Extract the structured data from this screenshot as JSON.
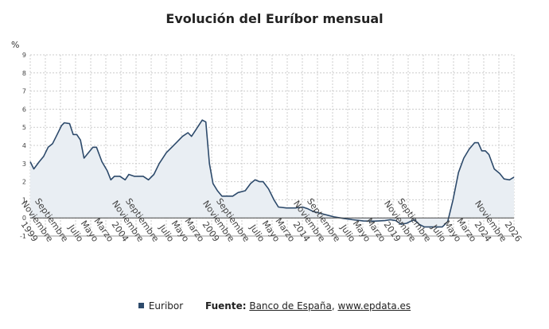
{
  "chart_data": {
    "type": "area",
    "title": "Evolución del Euríbor mensual",
    "ylabel": "%",
    "xlabel": "",
    "ylim": [
      -1,
      9
    ],
    "yticks": [
      -1,
      0,
      1,
      2,
      3,
      4,
      5,
      6,
      7,
      8,
      9
    ],
    "xlim": [
      1999.0,
      2026.0
    ],
    "x_tick_labels": [
      "1999",
      "Noviembre",
      "Septiembre",
      "Julio",
      "Mayo",
      "Marzo",
      "2004",
      "Noviembre",
      "Septiembre",
      "Julio",
      "Mayo",
      "Marzo",
      "2009",
      "Noviembre",
      "Septiembre",
      "Julio",
      "Mayo",
      "Marzo",
      "2014",
      "Noviembre",
      "Septiembre",
      "Julio",
      "Mayo",
      "Marzo",
      "2019",
      "Noviembre",
      "Septiembre",
      "Julio",
      "Mayo",
      "Marzo",
      "2024",
      "Noviembre",
      "2026"
    ],
    "grid": true,
    "legend": "bottom",
    "colors": {
      "line": "#2d4a6b",
      "fill": "#e9eef3",
      "grid": "#cccccc",
      "zero": "#444444"
    },
    "series": [
      {
        "name": "Euribor",
        "points": [
          [
            1999.0,
            3.1
          ],
          [
            1999.2,
            2.7
          ],
          [
            1999.5,
            3.1
          ],
          [
            1999.75,
            3.4
          ],
          [
            2000.0,
            3.9
          ],
          [
            2000.25,
            4.1
          ],
          [
            2000.5,
            4.6
          ],
          [
            2000.75,
            5.1
          ],
          [
            2000.9,
            5.25
          ],
          [
            2001.2,
            5.2
          ],
          [
            2001.4,
            4.6
          ],
          [
            2001.6,
            4.6
          ],
          [
            2001.8,
            4.3
          ],
          [
            2002.0,
            3.3
          ],
          [
            2002.25,
            3.6
          ],
          [
            2002.5,
            3.9
          ],
          [
            2002.7,
            3.9
          ],
          [
            2003.0,
            3.1
          ],
          [
            2003.3,
            2.6
          ],
          [
            2003.5,
            2.1
          ],
          [
            2003.7,
            2.3
          ],
          [
            2004.0,
            2.3
          ],
          [
            2004.3,
            2.1
          ],
          [
            2004.5,
            2.4
          ],
          [
            2004.8,
            2.3
          ],
          [
            2005.3,
            2.3
          ],
          [
            2005.6,
            2.1
          ],
          [
            2005.9,
            2.4
          ],
          [
            2006.2,
            3.0
          ],
          [
            2006.6,
            3.6
          ],
          [
            2006.9,
            3.9
          ],
          [
            2007.2,
            4.2
          ],
          [
            2007.5,
            4.5
          ],
          [
            2007.8,
            4.7
          ],
          [
            2008.0,
            4.5
          ],
          [
            2008.2,
            4.8
          ],
          [
            2008.4,
            5.1
          ],
          [
            2008.6,
            5.4
          ],
          [
            2008.8,
            5.3
          ],
          [
            2009.0,
            3.0
          ],
          [
            2009.2,
            1.9
          ],
          [
            2009.45,
            1.5
          ],
          [
            2009.7,
            1.2
          ],
          [
            2010.3,
            1.2
          ],
          [
            2010.6,
            1.4
          ],
          [
            2011.0,
            1.5
          ],
          [
            2011.3,
            1.9
          ],
          [
            2011.55,
            2.1
          ],
          [
            2011.8,
            2.0
          ],
          [
            2012.0,
            2.0
          ],
          [
            2012.3,
            1.6
          ],
          [
            2012.6,
            1.0
          ],
          [
            2012.85,
            0.6
          ],
          [
            2013.3,
            0.55
          ],
          [
            2013.8,
            0.55
          ],
          [
            2014.2,
            0.6
          ],
          [
            2014.5,
            0.5
          ],
          [
            2014.8,
            0.35
          ],
          [
            2015.2,
            0.25
          ],
          [
            2015.6,
            0.15
          ],
          [
            2016.0,
            0.05
          ],
          [
            2016.5,
            -0.03
          ],
          [
            2017.0,
            -0.1
          ],
          [
            2017.6,
            -0.17
          ],
          [
            2018.2,
            -0.18
          ],
          [
            2018.8,
            -0.15
          ],
          [
            2019.1,
            -0.1
          ],
          [
            2019.4,
            -0.15
          ],
          [
            2019.7,
            -0.35
          ],
          [
            2020.0,
            -0.3
          ],
          [
            2020.2,
            -0.2
          ],
          [
            2020.45,
            -0.1
          ],
          [
            2020.7,
            -0.35
          ],
          [
            2021.0,
            -0.5
          ],
          [
            2021.5,
            -0.5
          ],
          [
            2022.0,
            -0.5
          ],
          [
            2022.3,
            -0.2
          ],
          [
            2022.6,
            1.0
          ],
          [
            2022.9,
            2.5
          ],
          [
            2023.2,
            3.3
          ],
          [
            2023.5,
            3.8
          ],
          [
            2023.8,
            4.15
          ],
          [
            2024.0,
            4.15
          ],
          [
            2024.2,
            3.7
          ],
          [
            2024.4,
            3.7
          ],
          [
            2024.6,
            3.5
          ],
          [
            2024.9,
            2.7
          ],
          [
            2025.2,
            2.45
          ],
          [
            2025.45,
            2.15
          ],
          [
            2025.75,
            2.1
          ],
          [
            2026.0,
            2.25
          ]
        ]
      }
    ]
  },
  "footer": {
    "legend_label": "Euribor",
    "source_label": "Fuente:",
    "source_1": "Banco de España",
    "separator": ", ",
    "source_2": "www.epdata.es"
  }
}
